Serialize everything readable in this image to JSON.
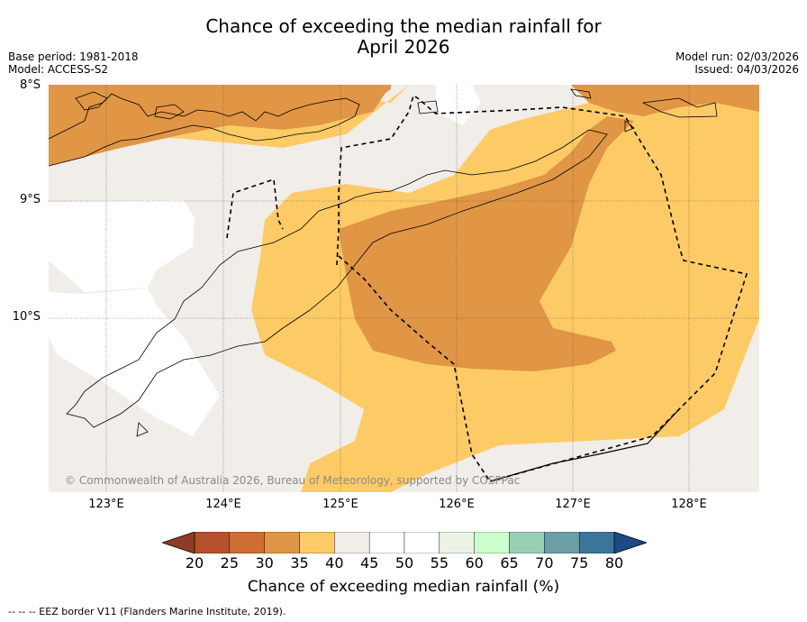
{
  "title": {
    "line1": "Chance of exceeding the median rainfall for",
    "line2": "April 2026"
  },
  "meta_left": {
    "base_period": "Base period: 1981-2018",
    "model": "Model: ACCESS-S2"
  },
  "meta_right": {
    "model_run": "Model run: 02/03/2026",
    "issued": "Issued: 04/03/2026"
  },
  "map": {
    "copyright": "© Commonwealth of Australia 2026, Bureau of Meteorology, supported by COSPPac",
    "lat_labels": [
      "8°S",
      "9°S",
      "10°S"
    ],
    "lon_labels": [
      "123°E",
      "124°E",
      "125°E",
      "126°E",
      "127°E",
      "128°E"
    ],
    "lat_range": [
      "8°S",
      "11.5°S"
    ],
    "lon_range": [
      "122.5°E",
      "128.6°E"
    ],
    "categories_shown": [
      {
        "range": "30-35",
        "color": "#e09645"
      },
      {
        "range": "35-40",
        "color": "#fdcb66"
      },
      {
        "range": "40-45",
        "color": "#f1ede8"
      },
      {
        "range": "45-55",
        "color": "#ffffff"
      }
    ]
  },
  "colorbar": {
    "label": "Chance of exceeding median rainfall (%)",
    "ticks": [
      "20",
      "25",
      "30",
      "35",
      "40",
      "45",
      "50",
      "55",
      "60",
      "65",
      "70",
      "75",
      "80"
    ],
    "colors": [
      "#b5512c",
      "#cf6e33",
      "#e09645",
      "#fdcb66",
      "#f1ede8",
      "#ffffff",
      "#ffffff",
      "#eaf3e6",
      "#ccffcc",
      "#99cfb4",
      "#6b9fa5",
      "#3a769b"
    ],
    "under_color": "#8f3b25",
    "over_color": "#1b4a84"
  },
  "footnote": "--  --  -- EEZ border V11 (Flanders Marine Institute, 2019)."
}
